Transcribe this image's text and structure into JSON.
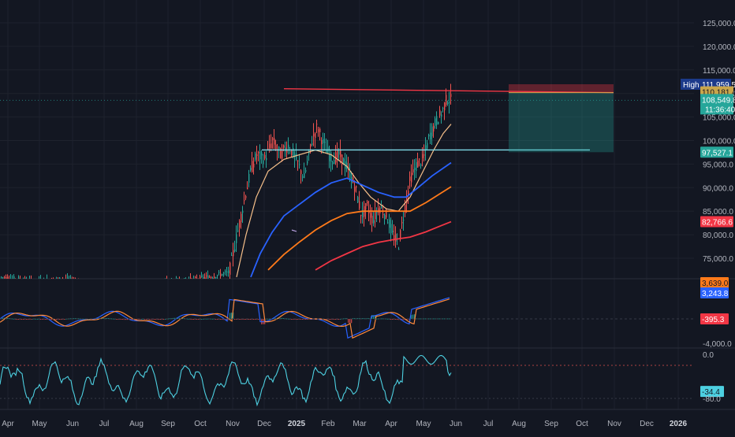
{
  "colors": {
    "background": "#131722",
    "grid": "#1e222d",
    "text": "#b2b5be",
    "candle_up": "#26a69a",
    "candle_down": "#ef5350",
    "ema_fast": "#f7c08a",
    "ema_mid": "#2962ff",
    "ema_orange": "#ff7a1a",
    "ema_red": "#f23645",
    "resistance_line": "#f23645",
    "support_line": "#7fdbe8",
    "macd_line": "#2962ff",
    "signal_line": "#ff8a3d",
    "oscillator": "#4dd0e1"
  },
  "chart_data": [
    {
      "type": "line",
      "name": "price",
      "y_ticks": [
        "125,000.0",
        "120,000.0",
        "115,000.0",
        "110,000.0",
        "105,000.0",
        "100,000.0",
        "95,000.0",
        "90,000.0",
        "85,000.0",
        "80,000.0",
        "75,000.0"
      ],
      "y_tick_values": [
        125000,
        120000,
        115000,
        110000,
        105000,
        100000,
        95000,
        90000,
        85000,
        80000,
        75000
      ],
      "ylim": [
        72000,
        128000
      ],
      "price_labels": [
        {
          "text": "High",
          "value": 111959.5,
          "tag": "111,959.5"
        },
        {
          "text": "110,181.4",
          "value": 110181.4
        },
        {
          "text": "108,549.8",
          "value": 108549.8,
          "sub": "11:36:40"
        },
        {
          "text": "97,527.1",
          "value": 97527.1
        },
        {
          "text": "82,766.6",
          "value": 82766.6
        }
      ],
      "ema_fast_end": 103500,
      "ema_mid_end": 95300,
      "ema_orange_end": 90200,
      "ema_red_end": 82766.6,
      "resistance": {
        "start": 111000,
        "end": 110181.4
      },
      "support": {
        "value": 98000
      },
      "position_box": {
        "top": 111959.5,
        "entry": 110181.4,
        "bottom": 97527.1
      }
    },
    {
      "type": "line",
      "name": "macd",
      "labels": [
        "3,639.0",
        "3,243.8",
        "-395.3",
        "-4,000.0"
      ],
      "values": [
        3639.0,
        3243.8,
        -395.3,
        -4000.0
      ]
    },
    {
      "type": "line",
      "name": "oscillator",
      "labels": [
        "0.0",
        "-34.4",
        "-80.0"
      ],
      "values": [
        0.0,
        -34.4,
        -80.0
      ]
    }
  ],
  "x_axis": {
    "labels": [
      "Apr",
      "May",
      "Jun",
      "Jul",
      "Aug",
      "Sep",
      "Oct",
      "Nov",
      "Dec",
      "2025",
      "Feb",
      "Mar",
      "Apr",
      "May",
      "Jun",
      "Jul",
      "Aug",
      "Sep",
      "Oct",
      "Nov",
      "Dec",
      "2026"
    ]
  }
}
